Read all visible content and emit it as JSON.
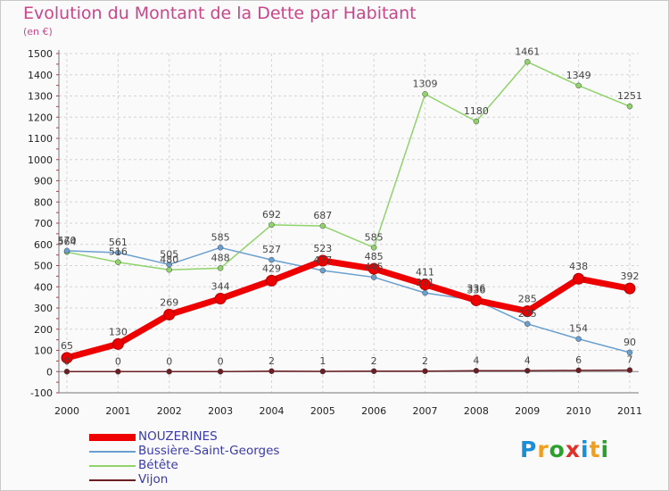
{
  "title": "Evolution du Montant de la Dette par Habitant",
  "unit": "(en €)",
  "logo": {
    "text": "Proxiti",
    "colors": [
      "#1a8fd8",
      "#f0a020",
      "#2ca02c",
      "#e0302a",
      "#1a8fd8",
      "#f0a020",
      "#2ca02c"
    ]
  },
  "chart_data": {
    "type": "line",
    "x": [
      "2000",
      "2001",
      "2002",
      "2003",
      "2004",
      "2005",
      "2006",
      "2007",
      "2008",
      "2009",
      "2010",
      "2011"
    ],
    "ylim": [
      -100,
      1500
    ],
    "yticks": [
      -100,
      0,
      100,
      200,
      300,
      400,
      500,
      600,
      700,
      800,
      900,
      1000,
      1100,
      1200,
      1300,
      1400,
      1500
    ],
    "grid": true,
    "legend_position": "bottom-left",
    "series": [
      {
        "name": "Vijon",
        "color": "#6b1f24",
        "width": 1.5,
        "values": [
          0,
          0,
          0,
          0,
          2,
          1,
          2,
          2,
          4,
          4,
          6,
          7
        ]
      },
      {
        "name": "Bétête",
        "color": "#8fd36a",
        "width": 1.5,
        "values": [
          564,
          516,
          480,
          488,
          692,
          687,
          585,
          1309,
          1180,
          1461,
          1349,
          1251
        ]
      },
      {
        "name": "Bussière-Saint-Georges",
        "color": "#6a9fd0",
        "width": 1.5,
        "values": [
          570,
          561,
          505,
          585,
          527,
          477,
          445,
          371,
          336,
          225,
          154,
          90
        ]
      },
      {
        "name": "NOUZERINES",
        "color": "#ee0000",
        "width": 7,
        "values": [
          65,
          130,
          269,
          344,
          429,
          523,
          485,
          411,
          336,
          285,
          438,
          392
        ]
      }
    ],
    "legend": [
      "NOUZERINES",
      "Bussière-Saint-Georges",
      "Bétête",
      "Vijon"
    ]
  }
}
